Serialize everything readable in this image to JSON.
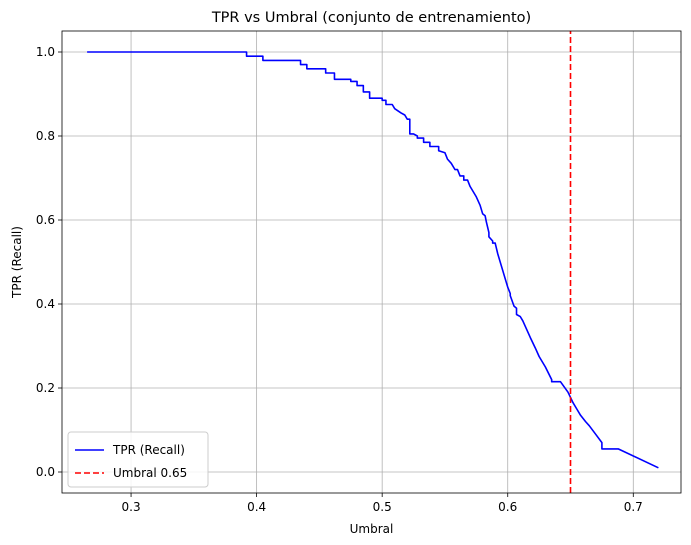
{
  "chart_data": {
    "type": "line",
    "title": "TPR vs Umbral (conjunto de entrenamiento)",
    "xlabel": "Umbral",
    "ylabel": "TPR (Recall)",
    "xlim": [
      0.245,
      0.738
    ],
    "ylim": [
      -0.05,
      1.05
    ],
    "xticks": [
      0.3,
      0.4,
      0.5,
      0.6,
      0.7
    ],
    "yticks": [
      0.0,
      0.2,
      0.4,
      0.6,
      0.8,
      1.0
    ],
    "xtick_labels": [
      "0.3",
      "0.4",
      "0.5",
      "0.6",
      "0.7"
    ],
    "ytick_labels": [
      "0.0",
      "0.2",
      "0.4",
      "0.6",
      "0.8",
      "1.0"
    ],
    "grid": true,
    "legend_position": "lower-left",
    "series": [
      {
        "name": "TPR (Recall)",
        "color": "#0000ff",
        "style": "solid",
        "x": [
          0.265,
          0.392,
          0.392,
          0.405,
          0.405,
          0.435,
          0.435,
          0.44,
          0.44,
          0.455,
          0.455,
          0.462,
          0.462,
          0.475,
          0.475,
          0.48,
          0.48,
          0.485,
          0.485,
          0.49,
          0.49,
          0.5,
          0.5,
          0.503,
          0.503,
          0.508,
          0.51,
          0.515,
          0.518,
          0.52,
          0.522,
          0.522,
          0.525,
          0.528,
          0.528,
          0.533,
          0.533,
          0.538,
          0.538,
          0.545,
          0.545,
          0.55,
          0.552,
          0.555,
          0.558,
          0.56,
          0.562,
          0.565,
          0.565,
          0.568,
          0.57,
          0.575,
          0.578,
          0.58,
          0.582,
          0.583,
          0.585,
          0.585,
          0.588,
          0.588,
          0.59,
          0.592,
          0.595,
          0.598,
          0.6,
          0.602,
          0.602,
          0.605,
          0.607,
          0.607,
          0.61,
          0.612,
          0.615,
          0.618,
          0.622,
          0.625,
          0.63,
          0.635,
          0.635,
          0.642,
          0.648,
          0.652,
          0.655,
          0.658,
          0.662,
          0.665,
          0.67,
          0.675,
          0.675,
          0.688,
          0.72
        ],
        "y": [
          1.0,
          1.0,
          0.99,
          0.99,
          0.98,
          0.98,
          0.97,
          0.97,
          0.96,
          0.96,
          0.95,
          0.95,
          0.935,
          0.935,
          0.93,
          0.93,
          0.92,
          0.92,
          0.905,
          0.905,
          0.89,
          0.89,
          0.885,
          0.885,
          0.875,
          0.875,
          0.865,
          0.855,
          0.85,
          0.84,
          0.84,
          0.805,
          0.805,
          0.8,
          0.795,
          0.795,
          0.785,
          0.785,
          0.775,
          0.775,
          0.765,
          0.76,
          0.745,
          0.735,
          0.72,
          0.72,
          0.705,
          0.705,
          0.695,
          0.695,
          0.68,
          0.655,
          0.635,
          0.615,
          0.61,
          0.595,
          0.57,
          0.56,
          0.55,
          0.545,
          0.545,
          0.52,
          0.49,
          0.46,
          0.44,
          0.425,
          0.42,
          0.395,
          0.39,
          0.375,
          0.37,
          0.36,
          0.34,
          0.32,
          0.295,
          0.275,
          0.25,
          0.22,
          0.215,
          0.215,
          0.19,
          0.165,
          0.15,
          0.135,
          0.12,
          0.11,
          0.09,
          0.07,
          0.055,
          0.055,
          0.01
        ]
      },
      {
        "name": "Umbral 0.65",
        "color": "#ff0000",
        "style": "dashed",
        "x": [
          0.65,
          0.65
        ],
        "y": [
          -0.05,
          1.05
        ]
      }
    ]
  }
}
